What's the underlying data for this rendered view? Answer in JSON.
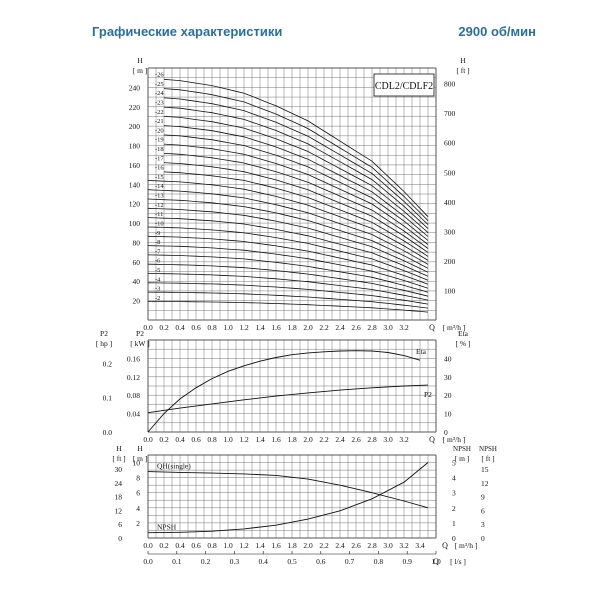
{
  "header": {
    "title": "Графические характеристики",
    "speed": "2900 об/мин"
  },
  "chart_data": [
    {
      "type": "line",
      "title": "CDL2/CDLF2",
      "xlabel": "Q",
      "xunit": "[ m³/h ]",
      "ylabel_left": "H",
      "yunit_left": "[ m ]",
      "ylabel_right": "H",
      "yunit_right": "[ ft ]",
      "xlim": [
        0,
        3.6
      ],
      "ylim": [
        0,
        260
      ],
      "x_ticks": [
        "0.0",
        "0.2",
        "0.4",
        "0.6",
        "0.8",
        "1.0",
        "1.2",
        "1.4",
        "1.6",
        "1.8",
        "2.0",
        "2.2",
        "2.4",
        "2.6",
        "2.8",
        "3.0",
        "3.2"
      ],
      "y_ticks_left": [
        "20",
        "40",
        "60",
        "80",
        "100",
        "120",
        "140",
        "160",
        "180",
        "200",
        "220",
        "240"
      ],
      "y_ticks_right": [
        "100",
        "200",
        "300",
        "400",
        "500",
        "600",
        "700",
        "800"
      ],
      "stage_labels": [
        "-2",
        "-3",
        "-4",
        "-5",
        "-6",
        "-7",
        "-8",
        "-9",
        "-10",
        "-11",
        "-12",
        "-13",
        "-14",
        "-15",
        "-16",
        "-17",
        "-18",
        "-19",
        "-20",
        "-21",
        "-22",
        "-23",
        "-24",
        "-25",
        "-26"
      ],
      "stages_min": 2,
      "stages_max": 26,
      "head_per_stage_at_q": {
        "q": [
          0,
          0.4,
          0.8,
          1.2,
          1.6,
          2.0,
          2.4,
          2.8,
          3.2,
          3.5
        ],
        "h": [
          9.6,
          9.5,
          9.3,
          9.0,
          8.5,
          7.9,
          7.1,
          6.3,
          5.1,
          4.1
        ]
      }
    },
    {
      "type": "line",
      "xlabel": "Q",
      "xunit": "[ m³/h ]",
      "ylabel_left_outer": "P2",
      "yunit_left_outer": "[ hp ]",
      "ylabel_left_inner": "P2",
      "yunit_left_inner": "[ kW ]",
      "ylabel_right": "Eta",
      "yunit_right": "[ % ]",
      "xlim": [
        0,
        3.6
      ],
      "ylim_kw": [
        0,
        0.2
      ],
      "x_ticks": [
        "0.0",
        "0.2",
        "0.4",
        "0.6",
        "0.8",
        "1.0",
        "1.2",
        "1.4",
        "1.6",
        "1.8",
        "2.0",
        "2.2",
        "2.4",
        "2.6",
        "2.8",
        "3.0",
        "3.2"
      ],
      "y_ticks_kw": [
        "0.04",
        "0.08",
        "0.12",
        "0.16"
      ],
      "y_ticks_hp": [
        "0.0",
        "0.1",
        "0.2"
      ],
      "y_ticks_eta": [
        "0",
        "10",
        "20",
        "30",
        "40"
      ],
      "series": [
        {
          "name": "Eta",
          "axis": "eta",
          "x": [
            0,
            0.2,
            0.4,
            0.6,
            0.8,
            1.0,
            1.2,
            1.4,
            1.6,
            1.8,
            2.0,
            2.2,
            2.4,
            2.6,
            2.8,
            3.0,
            3.2,
            3.4
          ],
          "y": [
            0,
            10,
            18,
            24,
            29,
            33,
            36,
            38.5,
            40.5,
            42,
            43,
            43.6,
            44,
            44.2,
            44,
            43.2,
            41.5,
            39
          ]
        },
        {
          "name": "P2",
          "axis": "kw",
          "x": [
            0,
            0.4,
            0.8,
            1.2,
            1.6,
            2.0,
            2.4,
            2.8,
            3.2,
            3.5
          ],
          "y": [
            0.042,
            0.052,
            0.061,
            0.07,
            0.078,
            0.085,
            0.091,
            0.096,
            0.1,
            0.102
          ]
        }
      ]
    },
    {
      "type": "line",
      "xlabel": "Q",
      "xunit": "[ m³/h ]",
      "x2label": "Q",
      "x2unit": "[ l/s ]",
      "ylabel_left_outer": "H",
      "yunit_left_outer": "[ ft ]",
      "ylabel_left_inner": "H",
      "yunit_left_inner": "[ m ]",
      "ylabel_right_inner": "NPSH",
      "yunit_right_inner": "[ m ]",
      "ylabel_right_outer": "NPSH",
      "yunit_right_outer": "[ ft ]",
      "xlim": [
        0,
        3.6
      ],
      "ylim_m": [
        0,
        11
      ],
      "x_ticks": [
        "0.0",
        "0.2",
        "0.4",
        "0.6",
        "0.8",
        "1.0",
        "1.2",
        "1.4",
        "1.6",
        "1.8",
        "2.0",
        "2.2",
        "2.4",
        "2.6",
        "2.8",
        "3.0",
        "3.2",
        "3.4"
      ],
      "x2_ticks": [
        "0.0",
        "0.1",
        "0.2",
        "0.3",
        "0.4",
        "0.5",
        "0.6",
        "0.7",
        "0.8",
        "0.9",
        "1.0"
      ],
      "y_ticks_m": [
        "2",
        "4",
        "6",
        "8",
        "10"
      ],
      "y_ticks_ft_left": [
        "0",
        "6",
        "12",
        "18",
        "24",
        "30"
      ],
      "y_ticks_npsh_m": [
        "0",
        "1",
        "2",
        "3",
        "4",
        "5"
      ],
      "y_ticks_npsh_ft": [
        "0",
        "3",
        "6",
        "9",
        "12",
        "15"
      ],
      "series": [
        {
          "name": "QH(single)",
          "axis": "m",
          "x": [
            0,
            0.4,
            0.8,
            1.2,
            1.6,
            2.0,
            2.4,
            2.8,
            3.2,
            3.5
          ],
          "y": [
            8.8,
            8.7,
            8.6,
            8.5,
            8.3,
            7.8,
            7.0,
            6.0,
            4.9,
            4.0
          ]
        },
        {
          "name": "NPSH",
          "axis": "m",
          "x": [
            0,
            0.4,
            0.8,
            1.2,
            1.6,
            2.0,
            2.4,
            2.8,
            3.2,
            3.5
          ],
          "y": [
            0.7,
            0.75,
            0.9,
            1.2,
            1.7,
            2.5,
            3.6,
            5.2,
            7.4,
            10.0
          ]
        }
      ]
    }
  ]
}
